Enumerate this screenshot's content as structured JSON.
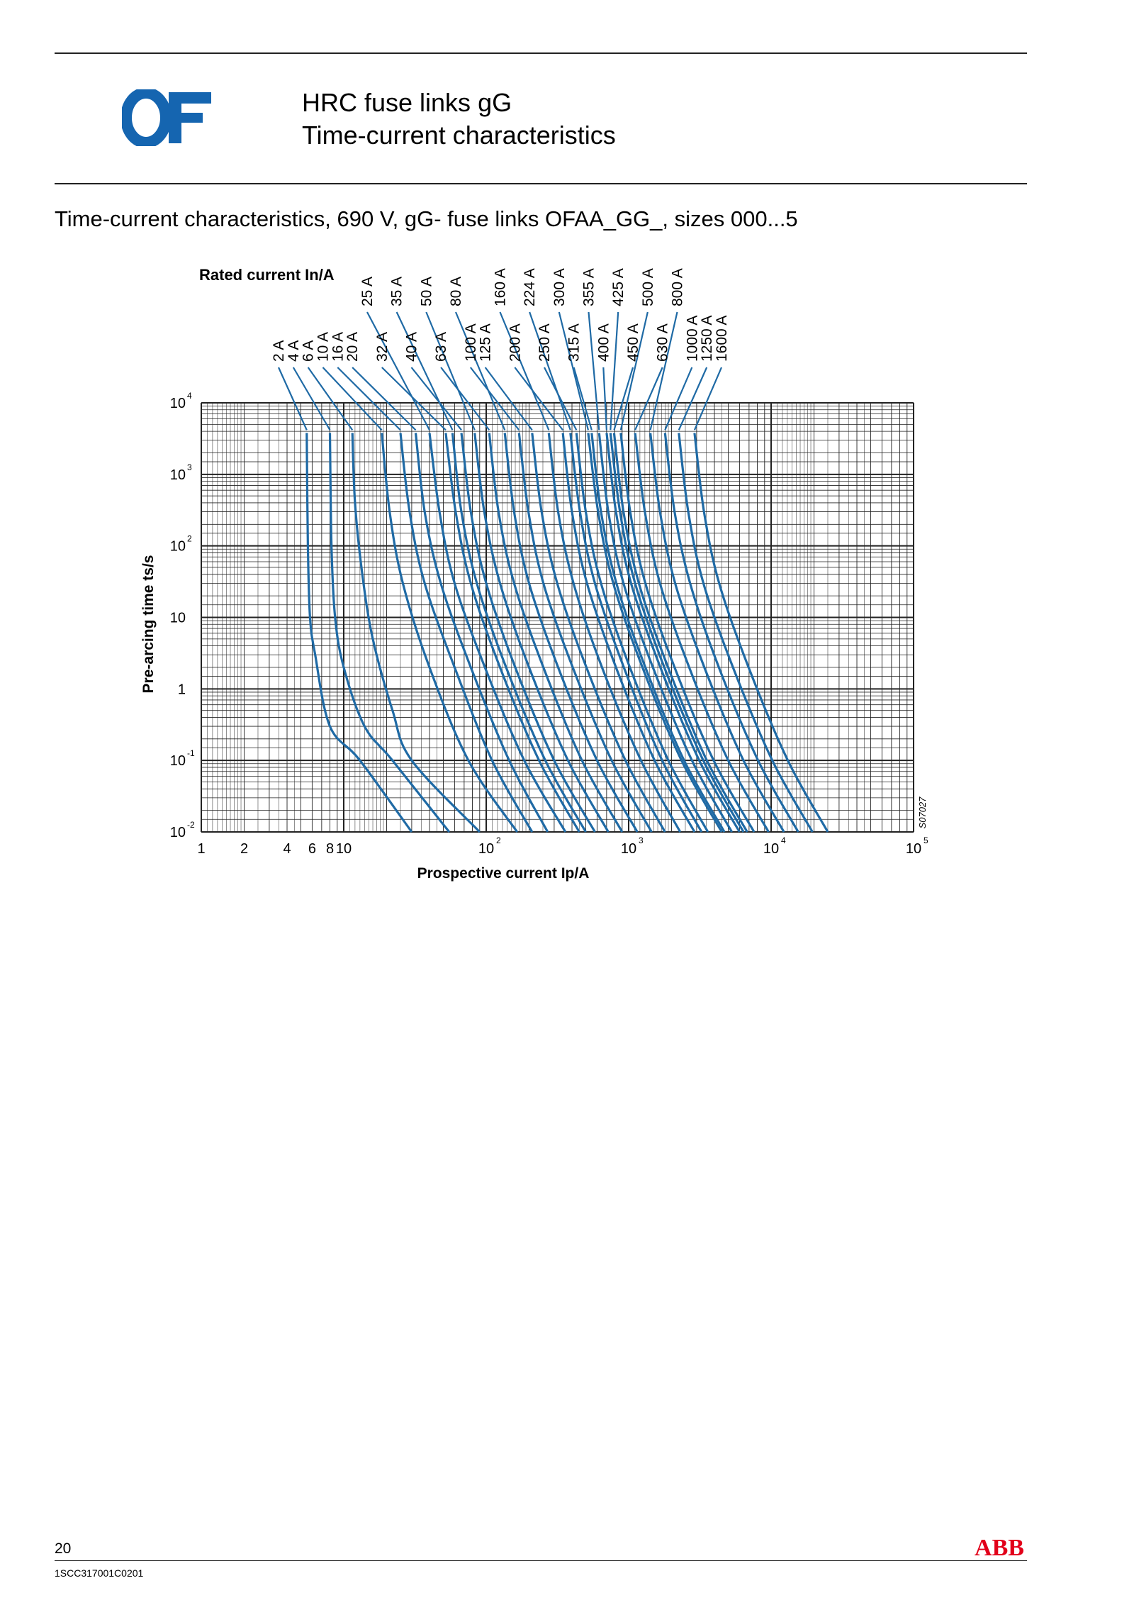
{
  "header": {
    "logo_text": "OF",
    "title_line1": "HRC fuse links gG",
    "title_line2": "Time-current characteristics"
  },
  "section_title": "Time-current characteristics, 690 V, gG- fuse links OFAA_GG_, sizes 000...5",
  "footer": {
    "page_number": "20",
    "doc_code": "1SCC317001C0201",
    "brand": "ABB"
  },
  "colors": {
    "curve": "#1f6aa5",
    "grid": "#222222",
    "logo": "#1565b0",
    "abb": "#e2001a"
  },
  "chart_data": {
    "type": "line",
    "x_scale": "log",
    "y_scale": "log",
    "xlim": [
      1,
      100000
    ],
    "ylim": [
      0.01,
      10000
    ],
    "grid": true,
    "legend_title": "Rated current In/A",
    "xlabel": "Prospective current Ip/A",
    "ylabel": "Pre-arcing time ts/s",
    "drawing_id": "S07027",
    "x_ticks": [
      {
        "value": 1,
        "label": "1",
        "sup": ""
      },
      {
        "value": 2,
        "label": "2",
        "sup": ""
      },
      {
        "value": 4,
        "label": "4",
        "sup": ""
      },
      {
        "value": 6,
        "label": "6",
        "sup": ""
      },
      {
        "value": 8,
        "label": "8",
        "sup": ""
      },
      {
        "value": 10,
        "label": "10",
        "sup": ""
      },
      {
        "value": 100,
        "label": "10",
        "sup": "2"
      },
      {
        "value": 1000,
        "label": "10",
        "sup": "3"
      },
      {
        "value": 10000,
        "label": "10",
        "sup": "4"
      },
      {
        "value": 100000,
        "label": "10",
        "sup": "5"
      }
    ],
    "y_ticks": [
      {
        "value": 10000,
        "label": "10",
        "sup": "4"
      },
      {
        "value": 1000,
        "label": "10",
        "sup": "3"
      },
      {
        "value": 100,
        "label": "10",
        "sup": "2"
      },
      {
        "value": 10,
        "label": "10",
        "sup": ""
      },
      {
        "value": 1,
        "label": "1",
        "sup": ""
      },
      {
        "value": 0.1,
        "label": "10",
        "sup": "-1"
      },
      {
        "value": 0.01,
        "label": "10",
        "sup": "-2"
      }
    ],
    "series": [
      {
        "name": "2 A",
        "label_row": 2,
        "x": [
          5.5,
          5.6,
          5.8,
          6.3,
          8,
          13,
          30
        ],
        "y": [
          3800,
          100,
          10,
          3,
          0.3,
          0.1,
          0.01
        ]
      },
      {
        "name": "4 A",
        "label_row": 2,
        "x": [
          8,
          8.2,
          8.7,
          10,
          14,
          22,
          55
        ],
        "y": [
          3800,
          100,
          10,
          2,
          0.3,
          0.1,
          0.01
        ]
      },
      {
        "name": "6 A",
        "label_row": 2,
        "x": [
          11.5,
          12,
          13.5,
          16,
          22,
          30,
          90
        ],
        "y": [
          3800,
          400,
          40,
          5,
          0.5,
          0.1,
          0.01
        ]
      },
      {
        "name": "10 A",
        "label_row": 2,
        "x": [
          18.5,
          21,
          26,
          40,
          75,
          165
        ],
        "y": [
          3800,
          300,
          30,
          2,
          0.1,
          0.01
        ]
      },
      {
        "name": "16 A",
        "label_row": 2,
        "x": [
          25,
          29,
          37,
          60,
          110,
          210
        ],
        "y": [
          3800,
          300,
          30,
          2,
          0.1,
          0.01
        ]
      },
      {
        "name": "20 A",
        "label_row": 2,
        "x": [
          32,
          37,
          48,
          78,
          145,
          270
        ],
        "y": [
          3800,
          300,
          30,
          2,
          0.1,
          0.01
        ]
      },
      {
        "name": "25 A",
        "label_row": 1,
        "x": [
          40,
          47,
          60,
          98,
          185,
          360
        ],
        "y": [
          3800,
          300,
          30,
          2,
          0.1,
          0.01
        ]
      },
      {
        "name": "32 A",
        "label_row": 2,
        "x": [
          52,
          61,
          78,
          125,
          235,
          450
        ],
        "y": [
          3800,
          300,
          30,
          2,
          0.1,
          0.01
        ]
      },
      {
        "name": "35 A",
        "label_row": 1,
        "x": [
          58,
          67,
          86,
          138,
          260,
          500
        ],
        "y": [
          3800,
          300,
          30,
          2,
          0.1,
          0.01
        ]
      },
      {
        "name": "40 A",
        "label_row": 2,
        "x": [
          67,
          78,
          100,
          160,
          300,
          580
        ],
        "y": [
          3800,
          300,
          30,
          2,
          0.1,
          0.01
        ]
      },
      {
        "name": "50 A",
        "label_row": 1,
        "x": [
          83,
          97,
          125,
          200,
          375,
          720
        ],
        "y": [
          3800,
          300,
          30,
          2,
          0.1,
          0.01
        ]
      },
      {
        "name": "63 A",
        "label_row": 2,
        "x": [
          105,
          122,
          157,
          252,
          470,
          900
        ],
        "y": [
          3800,
          300,
          30,
          2,
          0.1,
          0.01
        ]
      },
      {
        "name": "80 A",
        "label_row": 1,
        "x": [
          135,
          157,
          200,
          320,
          600,
          1150
        ],
        "y": [
          3800,
          300,
          30,
          2,
          0.1,
          0.01
        ]
      },
      {
        "name": "100 A",
        "label_row": 2,
        "x": [
          170,
          198,
          252,
          405,
          760,
          1450
        ],
        "y": [
          3800,
          300,
          30,
          2,
          0.1,
          0.01
        ]
      },
      {
        "name": "125 A",
        "label_row": 2,
        "x": [
          210,
          245,
          315,
          505,
          950,
          1800
        ],
        "y": [
          3800,
          300,
          30,
          2,
          0.1,
          0.01
        ]
      },
      {
        "name": "160 A",
        "label_row": 1,
        "x": [
          275,
          320,
          410,
          650,
          1220,
          2300
        ],
        "y": [
          3800,
          300,
          30,
          2,
          0.1,
          0.01
        ]
      },
      {
        "name": "200 A",
        "label_row": 2,
        "x": [
          345,
          400,
          510,
          815,
          1520,
          2900
        ],
        "y": [
          3800,
          300,
          30,
          2,
          0.1,
          0.01
        ]
      },
      {
        "name": "224 A",
        "label_row": 1,
        "x": [
          390,
          455,
          580,
          925,
          1720,
          3250
        ],
        "y": [
          3800,
          300,
          30,
          2,
          0.1,
          0.01
        ]
      },
      {
        "name": "250 A",
        "label_row": 2,
        "x": [
          430,
          500,
          640,
          1020,
          1900,
          3600
        ],
        "y": [
          3800,
          300,
          30,
          2,
          0.1,
          0.01
        ]
      },
      {
        "name": "300 A",
        "label_row": 1,
        "x": [
          520,
          610,
          780,
          1250,
          2350,
          4500
        ],
        "y": [
          3800,
          300,
          30,
          2,
          0.1,
          0.01
        ]
      },
      {
        "name": "315 A",
        "label_row": 2,
        "x": [
          550,
          640,
          820,
          1310,
          2450,
          4700
        ],
        "y": [
          3800,
          300,
          30,
          2,
          0.1,
          0.01
        ]
      },
      {
        "name": "355 A",
        "label_row": 1,
        "x": [
          620,
          720,
          920,
          1480,
          2780,
          5300
        ],
        "y": [
          3800,
          300,
          30,
          2,
          0.1,
          0.01
        ]
      },
      {
        "name": "400 A",
        "label_row": 2,
        "x": [
          700,
          815,
          1040,
          1670,
          3130,
          6000
        ],
        "y": [
          3800,
          300,
          30,
          2,
          0.1,
          0.01
        ]
      },
      {
        "name": "425 A",
        "label_row": 1,
        "x": [
          745,
          870,
          1110,
          1780,
          3340,
          6400
        ],
        "y": [
          3800,
          300,
          30,
          2,
          0.1,
          0.01
        ]
      },
      {
        "name": "450 A",
        "label_row": 2,
        "x": [
          790,
          920,
          1180,
          1890,
          3540,
          6800
        ],
        "y": [
          3800,
          300,
          30,
          2,
          0.1,
          0.01
        ]
      },
      {
        "name": "500 A",
        "label_row": 1,
        "x": [
          880,
          1025,
          1310,
          2100,
          3950,
          7600
        ],
        "y": [
          3800,
          300,
          30,
          2,
          0.1,
          0.01
        ]
      },
      {
        "name": "630 A",
        "label_row": 2,
        "x": [
          1110,
          1300,
          1660,
          2660,
          5000,
          9600
        ],
        "y": [
          3800,
          300,
          30,
          2,
          0.1,
          0.01
        ]
      },
      {
        "name": "800 A",
        "label_row": 1,
        "x": [
          1420,
          1660,
          2120,
          3400,
          6400,
          12300
        ],
        "y": [
          3800,
          300,
          30,
          2,
          0.1,
          0.01
        ]
      },
      {
        "name": "1000 A",
        "label_row": 2,
        "x": [
          1800,
          2100,
          2700,
          4300,
          8100,
          15500
        ],
        "y": [
          3800,
          300,
          30,
          2,
          0.1,
          0.01
        ]
      },
      {
        "name": "1250 A",
        "label_row": 2,
        "x": [
          2250,
          2620,
          3350,
          5400,
          10200,
          19500
        ],
        "y": [
          3800,
          300,
          30,
          2,
          0.1,
          0.01
        ]
      },
      {
        "name": "1600 A",
        "label_row": 2,
        "x": [
          2900,
          3380,
          4320,
          6950,
          13100,
          25000
        ],
        "y": [
          3800,
          300,
          30,
          2,
          0.1,
          0.01
        ]
      }
    ]
  }
}
